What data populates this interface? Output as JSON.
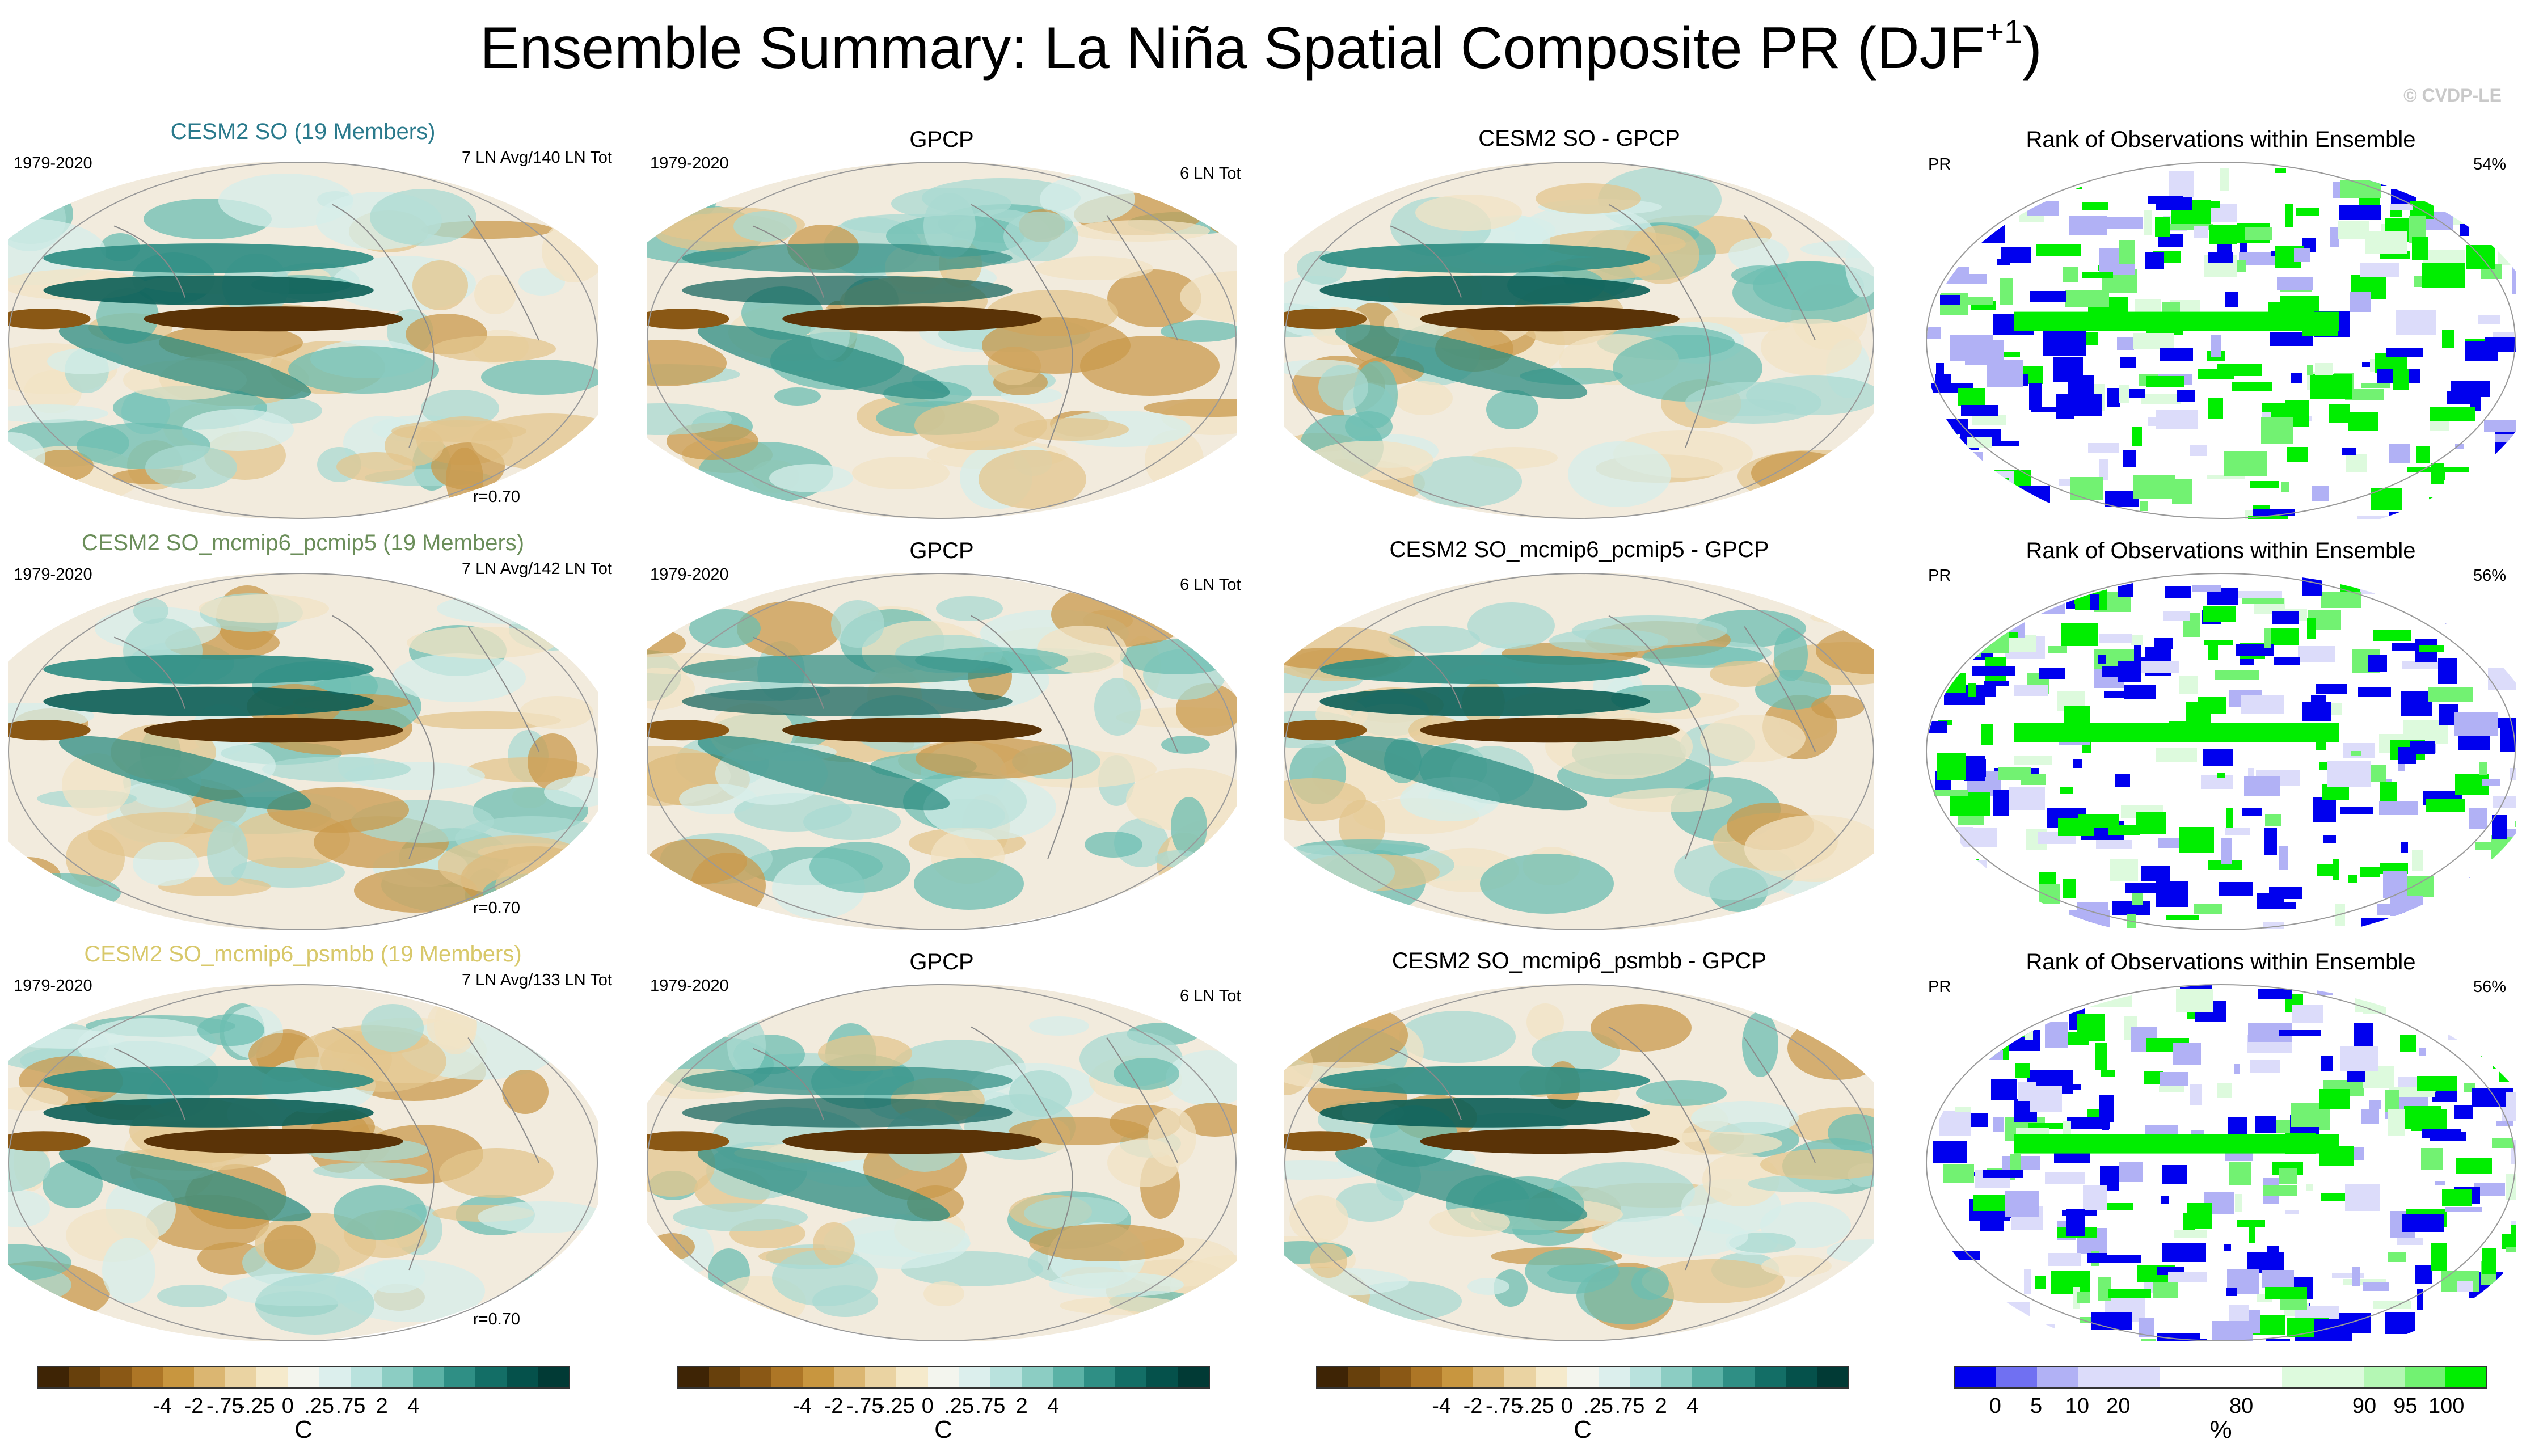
{
  "title": {
    "main": "Ensemble Summary: La Niña Spatial Composite PR (DJF",
    "sup": "+1",
    "close": ")"
  },
  "copyright": "© CVDP-LE",
  "rows": [
    {
      "model_title": "CESM2 SO (19 Members)",
      "model_color": "#2a7a8c",
      "period": "1979-2020",
      "model_count": "7 LN Avg/140 LN Tot",
      "corr": "r=0.70",
      "obs_title": "GPCP",
      "obs_period": "1979-2020",
      "obs_count": "6 LN Tot",
      "diff_title": "CESM2 SO - GPCP",
      "rank_title": "Rank of Observations within Ensemble",
      "rank_var": "PR",
      "rank_pct": "54%"
    },
    {
      "model_title": "CESM2 SO_mcmip6_pcmip5 (19 Members)",
      "model_color": "#6b8e5a",
      "period": "1979-2020",
      "model_count": "7 LN Avg/142 LN Tot",
      "corr": "r=0.70",
      "obs_title": "GPCP",
      "obs_period": "1979-2020",
      "obs_count": "6 LN Tot",
      "diff_title": "CESM2 SO_mcmip6_pcmip5 - GPCP",
      "rank_title": "Rank of Observations within Ensemble",
      "rank_var": "PR",
      "rank_pct": "56%"
    },
    {
      "model_title": "CESM2 SO_mcmip6_psmbb (19 Members)",
      "model_color": "#d8c86a",
      "period": "1979-2020",
      "model_count": "7 LN Avg/133 LN Tot",
      "corr": "r=0.70",
      "obs_title": "GPCP",
      "obs_period": "1979-2020",
      "obs_count": "6 LN Tot",
      "diff_title": "CESM2 SO_mcmip6_psmbb - GPCP",
      "rank_title": "Rank of Observations within Ensemble",
      "rank_var": "PR",
      "rank_pct": "56%"
    }
  ],
  "colorbars": {
    "anom": {
      "colors": [
        "#3e2405",
        "#67400c",
        "#8a5815",
        "#ad7626",
        "#c8963f",
        "#dbb671",
        "#ead3a2",
        "#f5eacc",
        "#f3f5ee",
        "#dcefed",
        "#b9e2dd",
        "#8ccdc3",
        "#5bb2a6",
        "#2f8f85",
        "#136e66",
        "#05514b",
        "#013a35"
      ],
      "ticks": [
        "-4",
        "-2",
        "-.75",
        "-.25",
        "0",
        ".25",
        ".75",
        "2",
        "4"
      ],
      "unit": "C"
    },
    "rank": {
      "colors": [
        "#0000ee",
        "#7070f2",
        "#b1b1f5",
        "#dcdcfa",
        "#dcdcfa",
        "#ffffff",
        "#ffffff",
        "#ffffff",
        "#ddfadd",
        "#ddfadd",
        "#b4f7b4",
        "#72f272",
        "#00ee00"
      ],
      "ticks": [
        "0",
        "5",
        "10",
        "20",
        "80",
        "90",
        "95",
        "100"
      ],
      "unit": "%"
    }
  },
  "chart_data": {
    "type": "heatmap",
    "panels": "3 rows x 4 columns of global maps (model composite, GPCP observations, model minus observations, rank of observations within ensemble)",
    "variable": "PR",
    "season": "DJF+1",
    "anomaly_levels": [
      -4,
      -2,
      -0.75,
      -0.25,
      0,
      0.25,
      0.75,
      2,
      4
    ],
    "rank_levels": [
      0,
      5,
      10,
      20,
      80,
      90,
      95,
      100
    ],
    "pattern_correlation": [
      0.7,
      0.7,
      0.7
    ],
    "rank_percent_within_bounds": [
      54,
      56,
      56
    ]
  }
}
